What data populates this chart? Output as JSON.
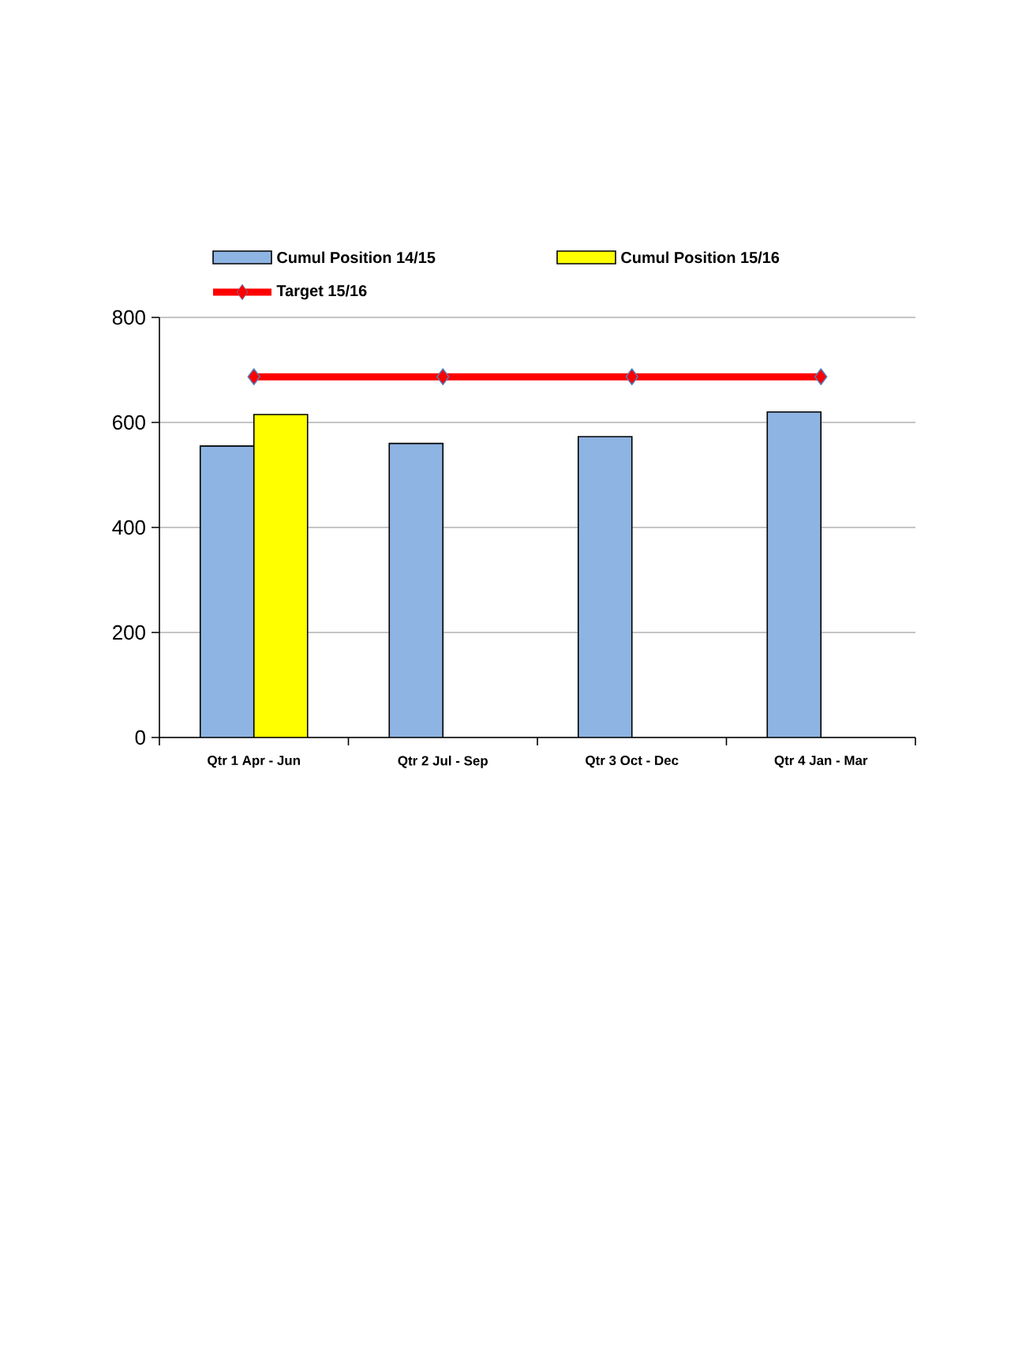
{
  "chart_data": {
    "type": "bar",
    "categories": [
      "Qtr 1 Apr - Jun",
      "Qtr 2 Jul - Sep",
      "Qtr 3 Oct - Dec",
      "Qtr 4 Jan - Mar"
    ],
    "series": [
      {
        "name": "Cumul Position 14/15",
        "color": "#8eb4e3",
        "values": [
          555,
          560,
          573,
          620
        ]
      },
      {
        "name": "Cumul Position 15/16",
        "color": "#ffff00",
        "values": [
          615,
          null,
          null,
          null
        ]
      },
      {
        "name": "Target 15/16",
        "type": "line",
        "color": "#ff0000",
        "marker": "diamond",
        "values": [
          687,
          687,
          687,
          687
        ]
      }
    ],
    "ylim": [
      0,
      800
    ],
    "yticks": [
      0,
      200,
      400,
      600,
      800
    ],
    "grid": "y",
    "legend": "top"
  }
}
